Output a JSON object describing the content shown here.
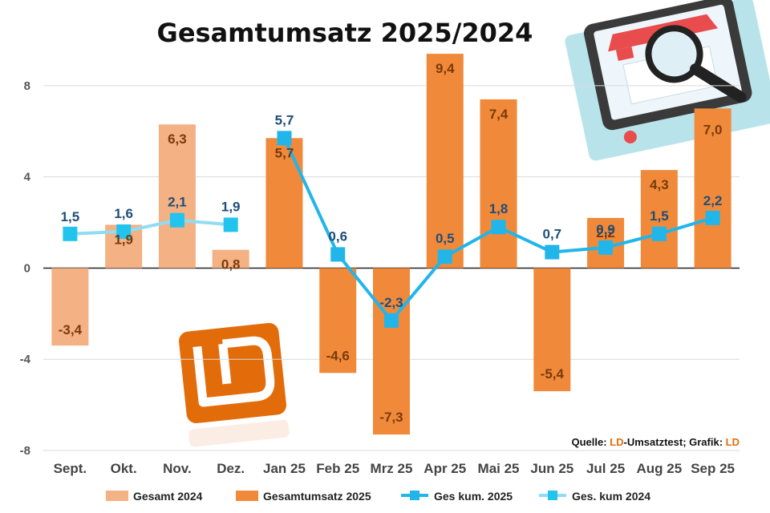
{
  "chart_data": {
    "type": "bar",
    "title": "Gesamtumsatz 2025/2024",
    "categories": [
      "Sept.",
      "Okt.",
      "Nov.",
      "Dez.",
      "Jan 25",
      "Feb 25",
      "Mrz 25",
      "Apr 25",
      "Mai 25",
      "Jun 25",
      "Jul 25",
      "Aug 25",
      "Sep 25"
    ],
    "ylim": [
      -8,
      10
    ],
    "yticks": [
      "8",
      "4",
      "0",
      "-4",
      "-8"
    ],
    "grid": true,
    "legend_position": "bottom",
    "series": [
      {
        "name": "Gesamt 2024",
        "kind": "bar",
        "color": "#f4b183",
        "values": [
          -3.4,
          1.9,
          6.3,
          0.8,
          null,
          null,
          null,
          null,
          null,
          null,
          null,
          null,
          null
        ],
        "labels": [
          "-3,4",
          "1,9",
          "6,3",
          "0,8",
          "",
          "",
          "",
          "",
          "",
          "",
          "",
          "",
          ""
        ]
      },
      {
        "name": "Gesamtumsatz 2025",
        "kind": "bar",
        "color": "#f08a3a",
        "values": [
          null,
          null,
          null,
          null,
          5.7,
          -4.6,
          -7.3,
          9.4,
          7.4,
          -5.4,
          2.2,
          4.3,
          7.0
        ],
        "labels": [
          "",
          "",
          "",
          "",
          "5,7",
          "-4,6",
          "-7,3",
          "9,4",
          "7,4",
          "-5,4",
          "2,2",
          "4,3",
          "7,0"
        ]
      },
      {
        "name": "Ges kum. 2025",
        "kind": "line",
        "color": "#22b5ea",
        "values": [
          null,
          null,
          null,
          null,
          5.7,
          0.6,
          -2.3,
          0.5,
          1.8,
          0.7,
          0.9,
          1.5,
          2.2
        ],
        "labels": [
          "",
          "",
          "",
          "",
          "5,7",
          "0,6",
          "-2,3",
          "0,5",
          "1,8",
          "0,7",
          "0,9",
          "1,5",
          "2,2"
        ]
      },
      {
        "name": "Ges. kum 2024",
        "kind": "line",
        "color": "#8fdcf4",
        "values": [
          1.5,
          1.6,
          2.1,
          1.9,
          null,
          null,
          null,
          null,
          null,
          null,
          null,
          null,
          null
        ],
        "labels": [
          "1,5",
          "1,6",
          "2,1",
          "1,9",
          "",
          "",
          "",
          "",
          "",
          "",
          "",
          "",
          ""
        ]
      }
    ]
  },
  "source_note": {
    "prefix": "Quelle: ",
    "brand1": "LD",
    "middle": "-Umsatztest; Grafik: ",
    "brand2": "LD"
  },
  "logo": {
    "text": "LD"
  },
  "colors": {
    "accent": "#e36c0a",
    "bar2024": "#f4b183",
    "bar2025": "#f08a3a",
    "line2025": "#22b5ea",
    "line2024": "#8fdcf4",
    "label_bar": "#7a3a0c",
    "label_line": "#1f4e79"
  }
}
